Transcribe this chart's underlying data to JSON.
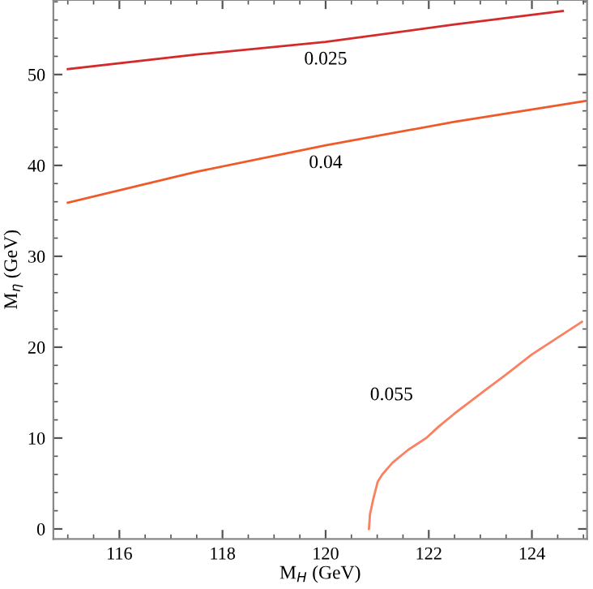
{
  "chart_data": {
    "type": "line",
    "xlabel": "M$_{H}$ (GeV)",
    "ylabel": "M$_{η}$ (GeV)",
    "xlim": [
      114.72,
      125.07
    ],
    "ylim": [
      -1.1,
      58.2
    ],
    "xticks": [
      116,
      118,
      120,
      122,
      124
    ],
    "yticks": [
      0,
      10,
      20,
      30,
      40,
      50
    ],
    "grid": false,
    "legend": false,
    "marker": "none",
    "line_style": "solid",
    "series": [
      {
        "name": "0.025",
        "color": "#d42a2a",
        "x": [
          115,
          117.5,
          120,
          122.5,
          124.6
        ],
        "values": [
          50.6,
          52.2,
          53.6,
          55.5,
          57.0
        ]
      },
      {
        "name": "0.04",
        "color": "#f05a28",
        "x": [
          115,
          117.5,
          120,
          122.5,
          125.05
        ],
        "values": [
          35.9,
          39.3,
          42.2,
          44.8,
          47.1
        ]
      },
      {
        "name": "0.055",
        "color": "#fa8060",
        "x": [
          120.84,
          120.86,
          120.92,
          121.01,
          121.1,
          121.3,
          121.6,
          121.95,
          122.2,
          122.5,
          123.1,
          123.5,
          124,
          124.97
        ],
        "values": [
          0,
          1.6,
          3.2,
          5.2,
          6.0,
          7.3,
          8.7,
          10.0,
          11.3,
          12.7,
          15.3,
          17.0,
          19.2,
          22.8
        ]
      }
    ]
  }
}
